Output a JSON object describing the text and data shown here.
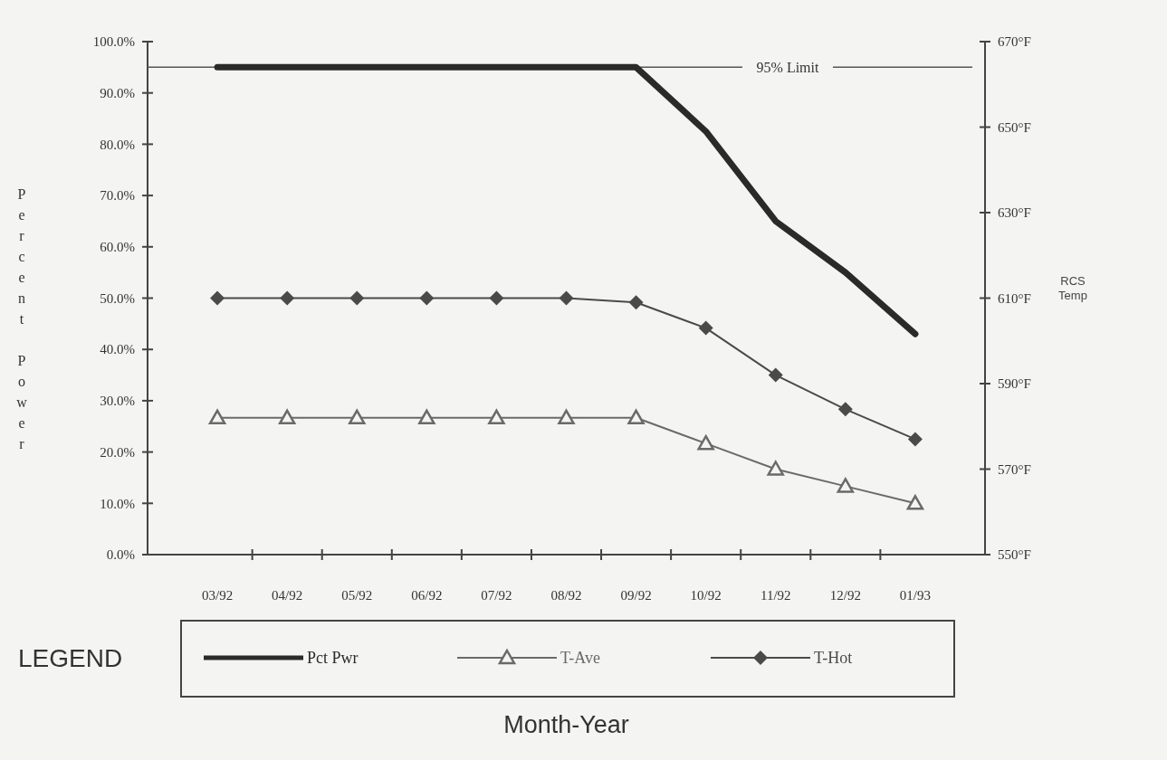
{
  "chart_data": {
    "type": "line",
    "xlabel": "Month-Year",
    "ylabel": "Percent Power",
    "y2label": "RCS Temp",
    "legend_title": "LEGEND",
    "categories": [
      "03/92",
      "04/92",
      "05/92",
      "06/92",
      "07/92",
      "08/92",
      "09/92",
      "10/92",
      "11/92",
      "12/92",
      "01/93"
    ],
    "series": [
      {
        "name": "Pct Pwr",
        "color": "#2a2a2a",
        "marker": "none",
        "values": [
          95,
          95,
          95,
          95,
          95,
          95,
          95,
          82.5,
          65,
          55,
          43
        ]
      },
      {
        "name": "T-Ave",
        "color": "#6a6a6a",
        "marker": "triangle",
        "axis": "y2",
        "values": [
          582,
          582,
          582,
          582,
          582,
          582,
          582,
          576,
          570,
          566,
          562
        ]
      },
      {
        "name": "T-Hot",
        "color": "#4a4a4a",
        "marker": "diamond",
        "axis": "y2",
        "values": [
          610,
          610,
          610,
          610,
          610,
          610,
          609,
          603,
          592,
          584,
          577
        ]
      }
    ],
    "ylim": [
      0,
      100
    ],
    "yticks": [
      {
        "value": 0,
        "label": "0.0%"
      },
      {
        "value": 10,
        "label": "10.0%"
      },
      {
        "value": 20,
        "label": "20.0%"
      },
      {
        "value": 30,
        "label": "30.0%"
      },
      {
        "value": 40,
        "label": "40.0%"
      },
      {
        "value": 50,
        "label": "50.0%"
      },
      {
        "value": 60,
        "label": "60.0%"
      },
      {
        "value": 70,
        "label": "70.0%"
      },
      {
        "value": 80,
        "label": "80.0%"
      },
      {
        "value": 90,
        "label": "90.0%"
      },
      {
        "value": 100,
        "label": "100.0%"
      }
    ],
    "y2lim": [
      550,
      670
    ],
    "y2ticks": [
      {
        "value": 550,
        "label": "550°F"
      },
      {
        "value": 570,
        "label": "570°F"
      },
      {
        "value": 590,
        "label": "590°F"
      },
      {
        "value": 610,
        "label": "610°F"
      },
      {
        "value": 630,
        "label": "630°F"
      },
      {
        "value": 650,
        "label": "650°F"
      },
      {
        "value": 670,
        "label": "670°F"
      }
    ],
    "ref_lines": [
      {
        "axis": "y",
        "value": 95,
        "label": "95% Limit",
        "color": "#555555"
      }
    ],
    "legend": "bottom",
    "grid": false
  }
}
